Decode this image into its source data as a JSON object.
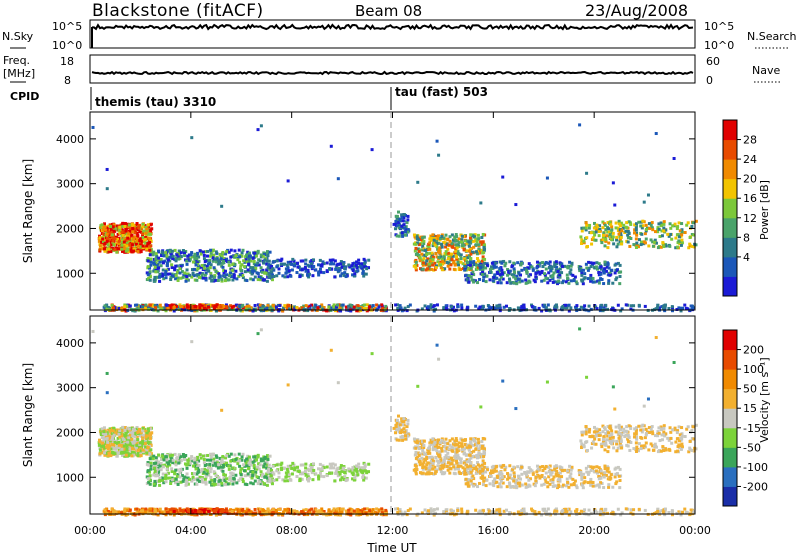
{
  "header": {
    "station": "Blackstone (fitACF)",
    "beam": "Beam 08",
    "date": "23/Aug/2008"
  },
  "top_panel": {
    "nsky_label": "N.Sky",
    "nsky_ticks": [
      "10^5",
      "10^0"
    ],
    "nsearch_label": "N.Search",
    "nsearch_ticks": [
      "10^5",
      "10^0"
    ],
    "freq_label_1": "Freq.",
    "freq_label_2": "[MHz]",
    "freq_ticks": [
      "18",
      "8"
    ],
    "nave_label": "Nave",
    "nave_ticks": [
      "60",
      "0"
    ],
    "cpid_label": "CPID",
    "cpid_segments": [
      {
        "label": "themis (tau) 3310",
        "start_hour": 0
      },
      {
        "label": "tau (fast) 503",
        "start_hour": 12
      }
    ]
  },
  "chart_data": [
    {
      "type": "heatmap",
      "name": "power",
      "xlabel": "",
      "ylabel": "Slant Range [km]",
      "xlim": [
        0,
        24
      ],
      "ylim": [
        180,
        4600
      ],
      "yticks": [
        1000,
        2000,
        3000,
        4000
      ],
      "colorbar": {
        "label": "Power [dB]",
        "ticks": [
          "28",
          "24",
          "20",
          "16",
          "12",
          "8",
          "4"
        ],
        "colors": [
          "#1b1bd6",
          "#1b57b8",
          "#2d7a8a",
          "#4aa36a",
          "#7cc83a",
          "#f2c400",
          "#f08a00",
          "#e84b00",
          "#e00000"
        ]
      }
    },
    {
      "type": "heatmap",
      "name": "velocity",
      "xlabel": "Time UT",
      "ylabel": "Slant Range [km]",
      "xlim": [
        0,
        24
      ],
      "ylim": [
        180,
        4600
      ],
      "yticks": [
        1000,
        2000,
        3000,
        4000
      ],
      "xticks": [
        "00:00",
        "04:00",
        "08:00",
        "12:00",
        "16:00",
        "20:00",
        "00:00"
      ],
      "colorbar": {
        "label": "Velocity [m s⁻¹]",
        "ticks": [
          "200",
          "100",
          "50",
          "15",
          "-15",
          "-50",
          "-100",
          "-200"
        ],
        "colors": [
          "#1a2ea8",
          "#2a6fbf",
          "#3aa55a",
          "#7cd33a",
          "#c8c8c0",
          "#f2b030",
          "#f08a00",
          "#e84b00",
          "#e00000"
        ]
      }
    }
  ]
}
